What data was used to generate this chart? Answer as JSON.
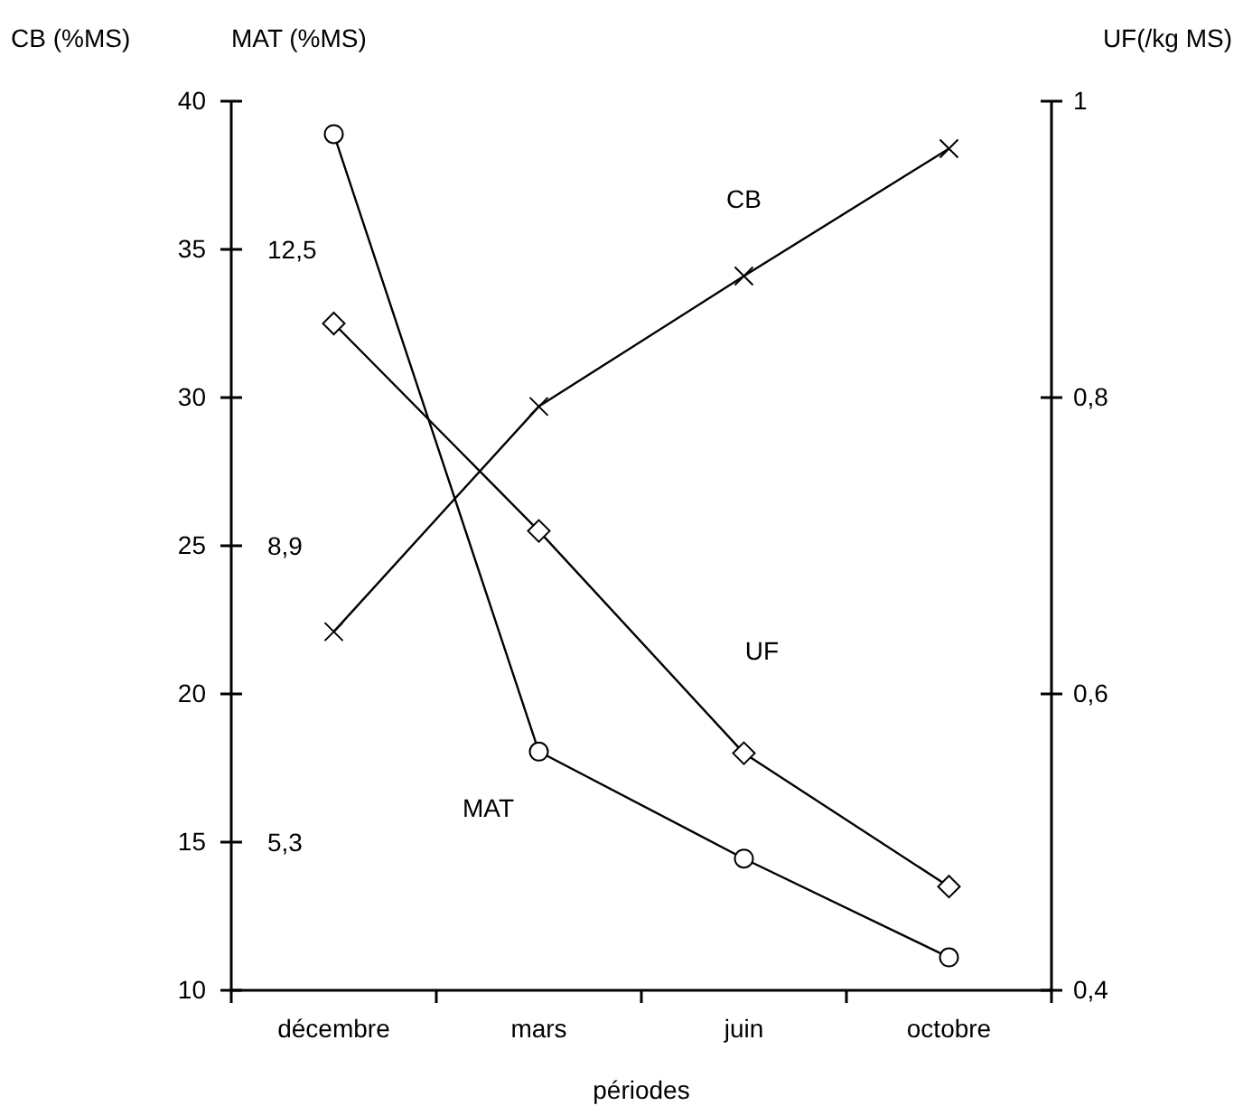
{
  "chart_data": {
    "type": "line",
    "xlabel": "périodes",
    "ylabel": "CB (%MS)",
    "y3label": "MAT (%MS)",
    "y2label": "UF(/kg MS)",
    "categories": [
      "décembre",
      "mars",
      "juin",
      "octobre"
    ],
    "ylim": [
      10,
      40
    ],
    "yticks": [
      10,
      15,
      20,
      25,
      30,
      35,
      40
    ],
    "y2lim": [
      0.4,
      1
    ],
    "y2ticks": [
      {
        "value": 0.4,
        "label": "0,4"
      },
      {
        "value": 0.6,
        "label": "0,6"
      },
      {
        "value": 0.8,
        "label": "0,8"
      },
      {
        "value": 1,
        "label": "1"
      }
    ],
    "y3lim": [
      3.5,
      14.3
    ],
    "y3ticks": [
      {
        "value": 5.3,
        "label": "5,3"
      },
      {
        "value": 8.9,
        "label": "8,9"
      },
      {
        "value": 12.5,
        "label": "12,5"
      }
    ],
    "grid": false,
    "line_style": "solid",
    "series": [
      {
        "name": "CB",
        "color": "#000000",
        "marker": "cross",
        "values": [
          22.1,
          29.7,
          34.1,
          38.4
        ]
      },
      {
        "name": "MAT",
        "color": "#000000",
        "marker": "circle",
        "axis": "y3",
        "values": [
          13.9,
          6.4,
          5.1,
          3.9
        ]
      },
      {
        "name": "UF",
        "color": "#000000",
        "marker": "diamond",
        "axis": "y2",
        "values": [
          0.85,
          0.71,
          0.56,
          0.47
        ]
      }
    ]
  }
}
